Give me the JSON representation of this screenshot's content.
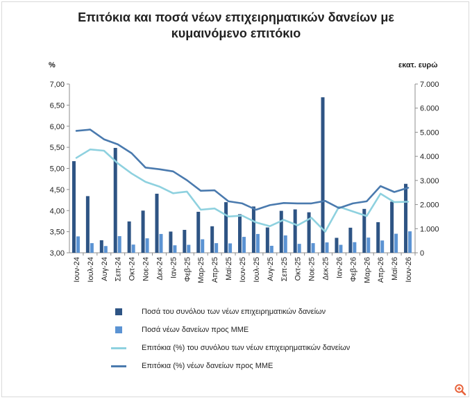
{
  "title_line1": "Επιτόκια και ποσά νέων επιχειρηματικών δανείων με",
  "title_line2": "κυμαινόμενο επιτόκιο",
  "left_unit": "%",
  "right_unit": "εκατ. ευρώ",
  "colors": {
    "total_amount": "#2e5484",
    "sme_amount": "#5b93d3",
    "total_rate": "#8ed1df",
    "sme_rate": "#4a7aae",
    "zoom_icon": "#e8623a"
  },
  "legend": [
    {
      "label": "Ποσά του συνόλου των νέων επιχειρηματικών δανείων",
      "kind": "bar",
      "color": "#2e5484"
    },
    {
      "label": "Ποσά νέων δανείων προς ΜΜΕ",
      "kind": "bar",
      "color": "#5b93d3"
    },
    {
      "label": "Επιτόκια (%) του συνόλου των νέων επιχειρηματικών δανείων",
      "kind": "line",
      "color": "#8ed1df"
    },
    {
      "label": "Επιτόκια (%) νέων δανείων προς ΜΜΕ",
      "kind": "line",
      "color": "#4a7aae"
    }
  ],
  "chart_data": {
    "type": "bar",
    "title": "Επιτόκια και ποσά νέων επιχειρηματικών δανείων με κυμαινόμενο επιτόκιο",
    "categories": [
      "Ιουν-24",
      "Ιουλ-24",
      "Αυγ-24",
      "Σεπ-24",
      "Οκτ-24",
      "Νοε-24",
      "Δεκ-24",
      "Ιαν-25",
      "Φεβ-25",
      "Μαρ-25",
      "Απρ-25",
      "Μαϊ-25",
      "Ιουν-25",
      "Ιουλ-25",
      "Αυγ-25",
      "Σεπ-25",
      "Οκτ-25",
      "Νοε-25",
      "Δεκ-25",
      "Ιαν-26",
      "Φεβ-26",
      "Μαρ-26",
      "Απρ-26",
      "Μαϊ-26",
      "Ιουν-26"
    ],
    "y_left": {
      "label": "%",
      "min": 3.0,
      "max": 7.0,
      "ticks": [
        "3,00",
        "3,50",
        "4,00",
        "4,50",
        "5,00",
        "5,50",
        "6,00",
        "6,50",
        "7,00"
      ]
    },
    "y_right": {
      "label": "εκατ. ευρώ",
      "min": 0,
      "max": 7000,
      "ticks": [
        "0",
        "1.000",
        "2.000",
        "3.000",
        "4.000",
        "5.000",
        "6.000",
        "7.000"
      ]
    },
    "grid": false,
    "legend_position": "bottom",
    "series": [
      {
        "name": "Ποσά του συνόλου των νέων επιχειρηματικών δανείων",
        "type": "bar",
        "axis": "right",
        "values": [
          3800,
          2350,
          520,
          4350,
          1300,
          1750,
          2450,
          880,
          950,
          1700,
          1100,
          2100,
          1600,
          1920,
          1050,
          1740,
          1800,
          1680,
          6450,
          620,
          1040,
          1820,
          1270,
          2120,
          2860
        ]
      },
      {
        "name": "Ποσά νέων δανείων προς ΜΜΕ",
        "type": "bar",
        "axis": "right",
        "values": [
          680,
          400,
          280,
          690,
          340,
          600,
          780,
          310,
          330,
          560,
          400,
          390,
          660,
          780,
          290,
          720,
          370,
          400,
          430,
          330,
          440,
          630,
          510,
          790,
          890
        ]
      },
      {
        "name": "Επιτόκια (%) του συνόλου των νέων επιχειρηματικών δανείων",
        "type": "line",
        "axis": "left",
        "values": [
          5.25,
          5.45,
          5.42,
          5.12,
          4.88,
          4.68,
          4.57,
          4.41,
          4.45,
          4.02,
          4.05,
          3.86,
          3.88,
          3.72,
          3.63,
          3.78,
          3.65,
          3.83,
          3.5,
          4.09,
          3.98,
          3.87,
          4.4,
          4.2,
          4.21
        ]
      },
      {
        "name": "Επιτόκια (%) νέων δανείων προς ΜΜΕ",
        "type": "line",
        "axis": "left",
        "values": [
          5.89,
          5.92,
          5.69,
          5.57,
          5.36,
          5.02,
          4.98,
          4.93,
          4.72,
          4.47,
          4.48,
          4.22,
          4.17,
          4.02,
          4.13,
          4.18,
          4.17,
          4.17,
          4.23,
          4.06,
          4.17,
          4.22,
          4.58,
          4.44,
          4.54
        ]
      }
    ]
  }
}
